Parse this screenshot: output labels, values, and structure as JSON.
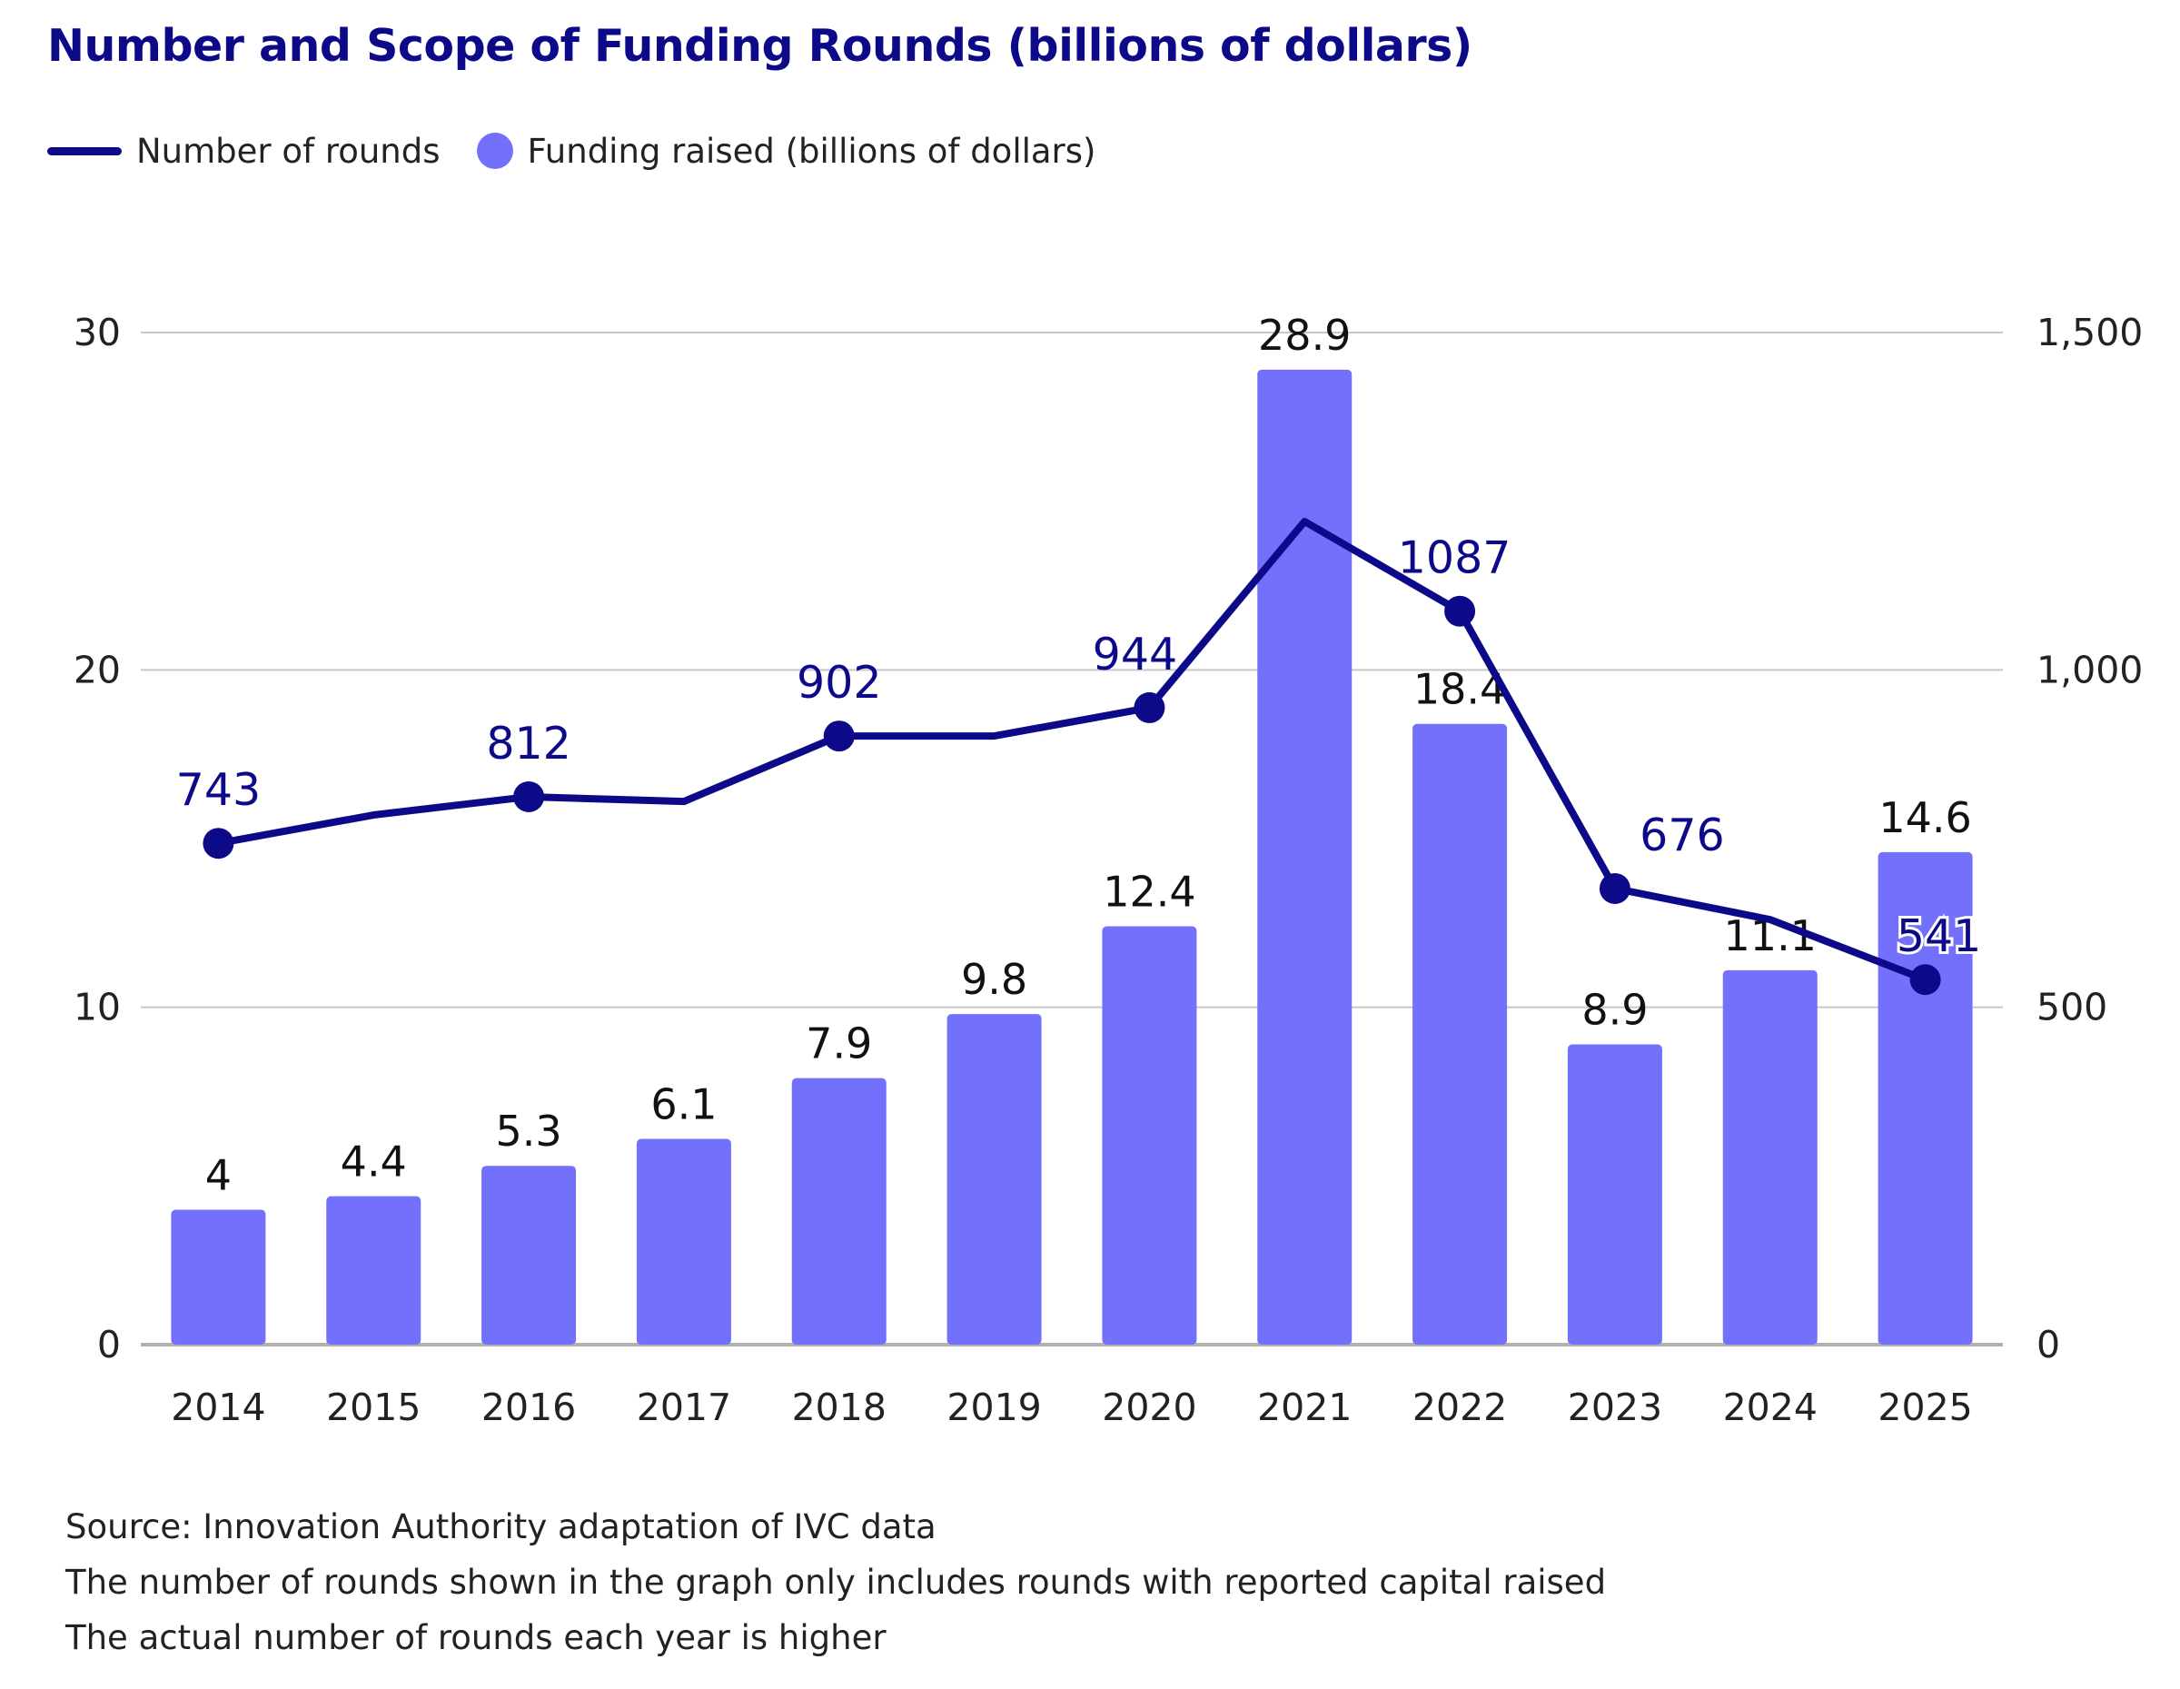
{
  "colors": {
    "title": "#0d0a8a",
    "line": "#0d0a8a",
    "bar": "#7371fc",
    "grid": "#c8c8c8",
    "axis": "#b0b0b0",
    "text": "#222222"
  },
  "chart_data": {
    "type": "bar",
    "title": "Number and Scope of Funding Rounds (billions of dollars)",
    "categories": [
      "2014",
      "2015",
      "2016",
      "2017",
      "2018",
      "2019",
      "2020",
      "2021",
      "2022",
      "2023",
      "2024",
      "2025"
    ],
    "series": [
      {
        "name": "Funding raised (billions of dollars)",
        "type": "bar",
        "axis": "left",
        "values": [
          4,
          4.4,
          5.3,
          6.1,
          7.9,
          9.8,
          12.4,
          28.9,
          18.4,
          8.9,
          11.1,
          14.6
        ],
        "labels": [
          "4",
          "4.4",
          "5.3",
          "6.1",
          "7.9",
          "9.8",
          "12.4",
          "28.9",
          "18.4",
          "8.9",
          "11.1",
          "14.6"
        ]
      },
      {
        "name": "Number of rounds",
        "type": "line",
        "axis": "right",
        "values": [
          743,
          785,
          812,
          805,
          902,
          902,
          944,
          1220,
          1087,
          676,
          630,
          541
        ],
        "markers": [
          true,
          false,
          true,
          false,
          true,
          false,
          true,
          false,
          true,
          true,
          false,
          true
        ],
        "labels": [
          "743",
          "",
          "812",
          "",
          "902",
          "",
          "944",
          "",
          "1087",
          "676",
          "",
          "541"
        ]
      }
    ],
    "left_axis": {
      "ylim": [
        0,
        30
      ],
      "ticks": [
        0,
        10,
        20,
        30
      ],
      "tick_labels": [
        "0",
        "10",
        "20",
        "30"
      ]
    },
    "right_axis": {
      "ylim": [
        0,
        1500
      ],
      "ticks": [
        0,
        500,
        1000,
        1500
      ],
      "tick_labels": [
        "0",
        "500",
        "1,000",
        "1,500"
      ]
    },
    "grid": true,
    "legend": {
      "position": "top-left",
      "entries": [
        {
          "label": "Number of rounds",
          "marker": "line"
        },
        {
          "label": "Funding raised (billions of dollars)",
          "marker": "circle"
        }
      ]
    }
  },
  "footnotes": [
    "Source: Innovation Authority adaptation of IVC data",
    "The number of rounds shown in the graph only includes rounds with reported capital raised",
    "The actual number of rounds each year is higher"
  ]
}
